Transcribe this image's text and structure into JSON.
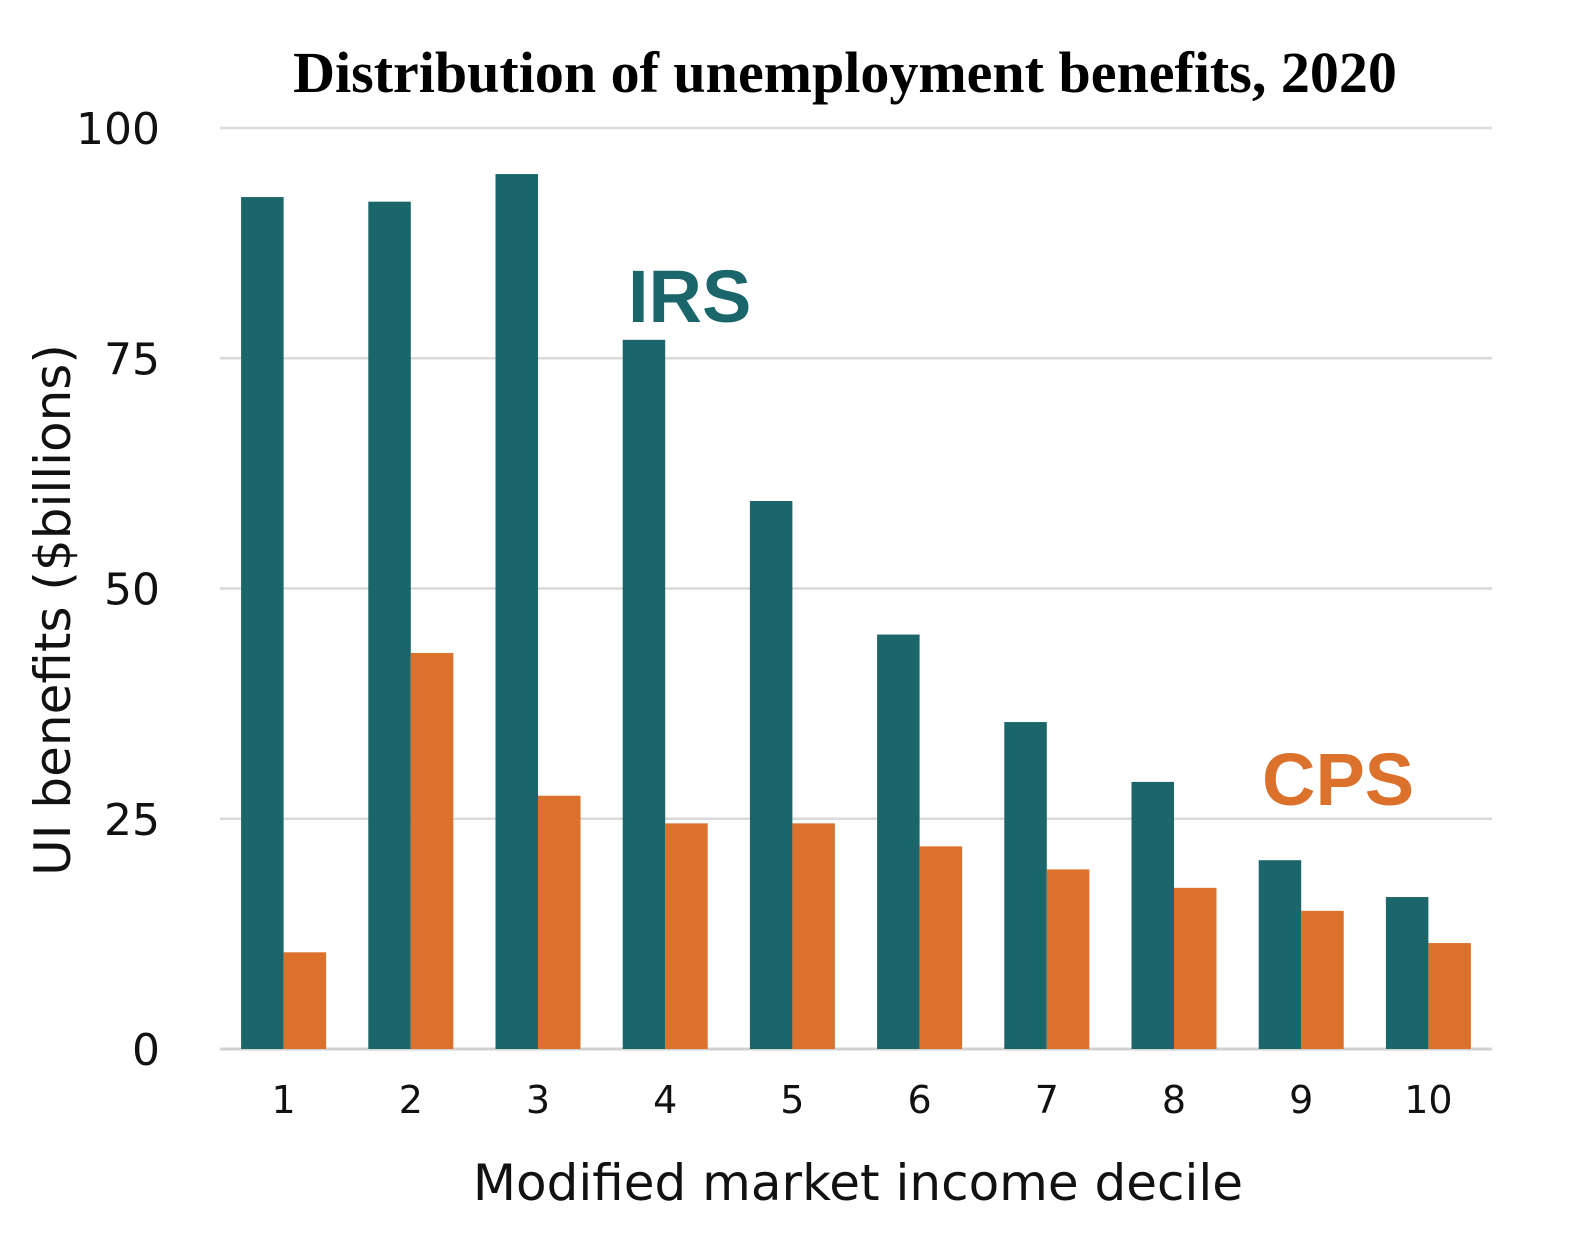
{
  "chart_data": {
    "type": "bar",
    "title": "Distribution of unemployment benefits, 2020",
    "xlabel": "Modified market income decile",
    "ylabel": "UI benefits ($billions)",
    "categories": [
      "1",
      "2",
      "3",
      "4",
      "5",
      "6",
      "7",
      "8",
      "9",
      "10"
    ],
    "series": [
      {
        "name": "IRS",
        "color": "#1b666a",
        "values": [
          92.5,
          92,
          95,
          77,
          59.5,
          45,
          35.5,
          29,
          20.5,
          16.5
        ]
      },
      {
        "name": "CPS",
        "color": "#db712b",
        "values": [
          10.5,
          43,
          27.5,
          24.5,
          24.5,
          22,
          19.5,
          17.5,
          15,
          11.5
        ]
      }
    ],
    "ylim": [
      0,
      100
    ],
    "yticks": [
      "0",
      "25",
      "50",
      "75",
      "100"
    ],
    "grid": true,
    "legend": "inline labels near bars"
  }
}
